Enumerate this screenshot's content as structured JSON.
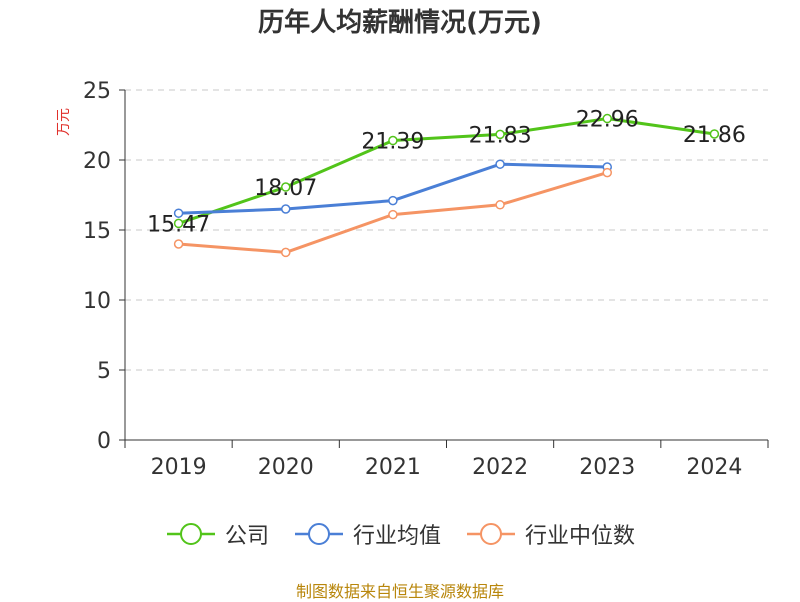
{
  "chart_data": {
    "type": "line",
    "title": "历年人均薪酬情况(万元)",
    "ylabel": "万元",
    "xlabel": "",
    "ylim": [
      0,
      25
    ],
    "yticks": [
      0,
      5,
      10,
      15,
      20,
      25
    ],
    "grid": true,
    "legend_position": "bottom",
    "categories": [
      "2019",
      "2020",
      "2021",
      "2022",
      "2023",
      "2024"
    ],
    "series": [
      {
        "name": "公司",
        "color": "#52c41a",
        "values": [
          15.47,
          18.07,
          21.39,
          21.83,
          22.96,
          21.86
        ],
        "labels": [
          "15.47",
          "18.07",
          "21.39",
          "21.83",
          "22.96",
          "21.86"
        ]
      },
      {
        "name": "行业均值",
        "color": "#4a7fd6",
        "values": [
          16.2,
          16.5,
          17.1,
          19.7,
          19.5,
          null
        ]
      },
      {
        "name": "行业中位数",
        "color": "#f59464",
        "values": [
          14.0,
          13.4,
          16.1,
          16.8,
          19.1,
          null
        ]
      }
    ]
  },
  "footer": {
    "source": "制图数据来自恒生聚源数据库"
  }
}
